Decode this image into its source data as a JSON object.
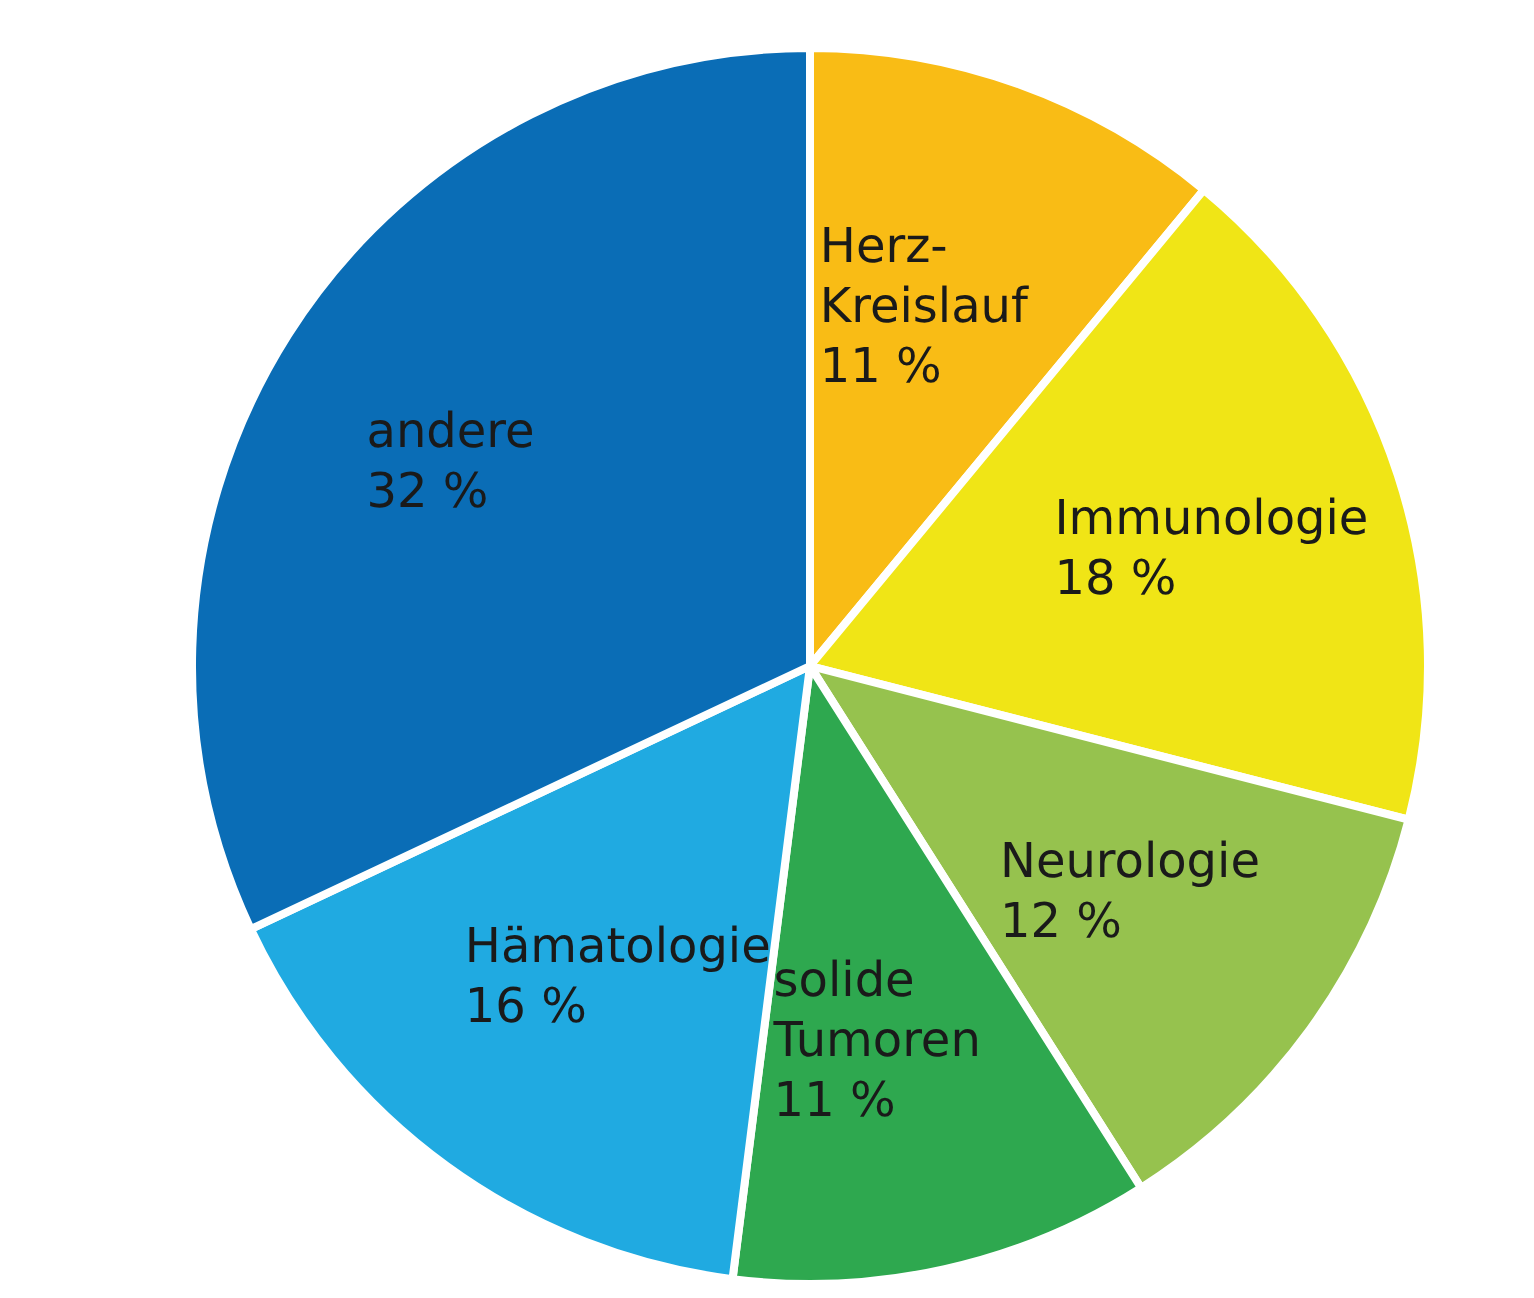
{
  "chart_data": {
    "type": "pie",
    "categories": [
      "Herz-Kreislauf",
      "Immunologie",
      "Neurologie",
      "solide Tumoren",
      "Hämatologie",
      "andere"
    ],
    "values": [
      11,
      18,
      12,
      11,
      16,
      32
    ],
    "colors": [
      "#f9bc15",
      "#f0e516",
      "#96c24e",
      "#2ea84f",
      "#20aae1",
      "#0a6db6"
    ],
    "value_labels": [
      "11 %",
      "18 %",
      "12 %",
      "11 %",
      "16 %",
      "32 %"
    ]
  }
}
